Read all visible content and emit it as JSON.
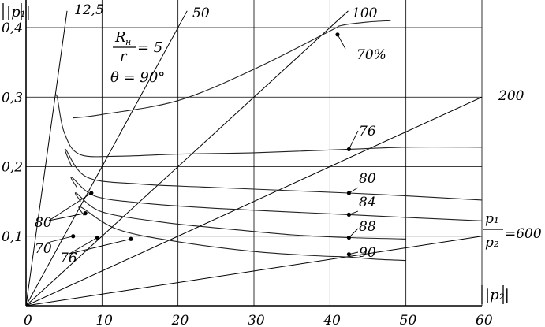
{
  "chart_data": {
    "type": "line",
    "xlabel": "|p₂|",
    "ylabel": "|p₁|",
    "xlim": [
      0,
      60
    ],
    "ylim": [
      0,
      0.4
    ],
    "grid": true,
    "x_ticks": [
      {
        "value": 0,
        "label": "0"
      },
      {
        "value": 10,
        "label": "10"
      },
      {
        "value": 20,
        "label": "20"
      },
      {
        "value": 30,
        "label": "30"
      },
      {
        "value": 40,
        "label": "40"
      },
      {
        "value": 50,
        "label": "50"
      },
      {
        "value": 60,
        "label": "60"
      }
    ],
    "y_ticks": [
      {
        "value": 0.1,
        "label": "0,1"
      },
      {
        "value": 0.2,
        "label": "0,2"
      },
      {
        "value": 0.3,
        "label": "0,3"
      },
      {
        "value": 0.4,
        "label": "0,4"
      }
    ],
    "annotation": {
      "ratio_sub_num": "н",
      "ratio_value": "= 5",
      "angle": "θ = 90°"
    },
    "ratio_lines": [
      {
        "name": "12,5",
        "x_end": 5.4,
        "y_end": 0.424
      },
      {
        "name": "50",
        "x_end": 21.2,
        "y_end": 0.424
      },
      {
        "name": "100",
        "x_end": 42.4,
        "y_end": 0.424
      },
      {
        "name": "200",
        "x_end": 60,
        "y_end": 0.3
      },
      {
        "name": "600",
        "x_end": 60,
        "y_end": 0.1
      }
    ],
    "ratio_600_label": {
      "num": "p₁",
      "den": "p₂",
      "value": "=600"
    },
    "efficiency_contours": [
      {
        "name": "70%",
        "points": [
          [
            6.2,
            0.27
          ],
          [
            10,
            0.275
          ],
          [
            20,
            0.295
          ],
          [
            30,
            0.34
          ],
          [
            40,
            0.395
          ],
          [
            41.5,
            0.403
          ],
          [
            45,
            0.408
          ],
          [
            48,
            0.41
          ]
        ]
      },
      {
        "name": "76",
        "points": [
          [
            3.8,
            0.3
          ],
          [
            4.1,
            0.3
          ],
          [
            5,
            0.25
          ],
          [
            7,
            0.218
          ],
          [
            12,
            0.215
          ],
          [
            20,
            0.218
          ],
          [
            30,
            0.22
          ],
          [
            42.5,
            0.225
          ],
          [
            50,
            0.228
          ],
          [
            60,
            0.228
          ]
        ]
      },
      {
        "name": "80",
        "points": [
          [
            6,
            0.2
          ],
          [
            5.2,
            0.225
          ],
          [
            8,
            0.185
          ],
          [
            15,
            0.175
          ],
          [
            25,
            0.17
          ],
          [
            42.5,
            0.162
          ],
          [
            50,
            0.158
          ],
          [
            60,
            0.152
          ]
        ]
      },
      {
        "name": "84",
        "points": [
          [
            6.7,
            0.17
          ],
          [
            6,
            0.185
          ],
          [
            9,
            0.158
          ],
          [
            15,
            0.148
          ],
          [
            25,
            0.14
          ],
          [
            42.5,
            0.131
          ],
          [
            50,
            0.127
          ],
          [
            60,
            0.122
          ]
        ]
      },
      {
        "name": "88",
        "points": [
          [
            7.2,
            0.15
          ],
          [
            6.6,
            0.162
          ],
          [
            10,
            0.135
          ],
          [
            18,
            0.12
          ],
          [
            25,
            0.112
          ],
          [
            35,
            0.102
          ],
          [
            42.5,
            0.098
          ],
          [
            50,
            0.096
          ]
        ]
      },
      {
        "name": "90",
        "points": [
          [
            7.6,
            0.13
          ],
          [
            7.2,
            0.142
          ],
          [
            12,
            0.11
          ],
          [
            20,
            0.092
          ],
          [
            30,
            0.078
          ],
          [
            38,
            0.072
          ],
          [
            42.5,
            0.07
          ],
          [
            46,
            0.067
          ],
          [
            50,
            0.065
          ]
        ]
      }
    ],
    "contour_labels": [
      "70%",
      "76",
      "80",
      "84",
      "88",
      "90"
    ],
    "left_labels": [
      "80",
      "70",
      "76"
    ],
    "marked_points": [
      [
        41,
        0.39
      ],
      [
        42.5,
        0.225
      ],
      [
        42.5,
        0.162
      ],
      [
        42.5,
        0.131
      ],
      [
        42.5,
        0.098
      ],
      [
        42.5,
        0.074
      ],
      [
        8.6,
        0.162
      ],
      [
        7.8,
        0.133
      ],
      [
        6.2,
        0.1
      ],
      [
        9.4,
        0.098
      ],
      [
        13.8,
        0.096
      ]
    ]
  }
}
